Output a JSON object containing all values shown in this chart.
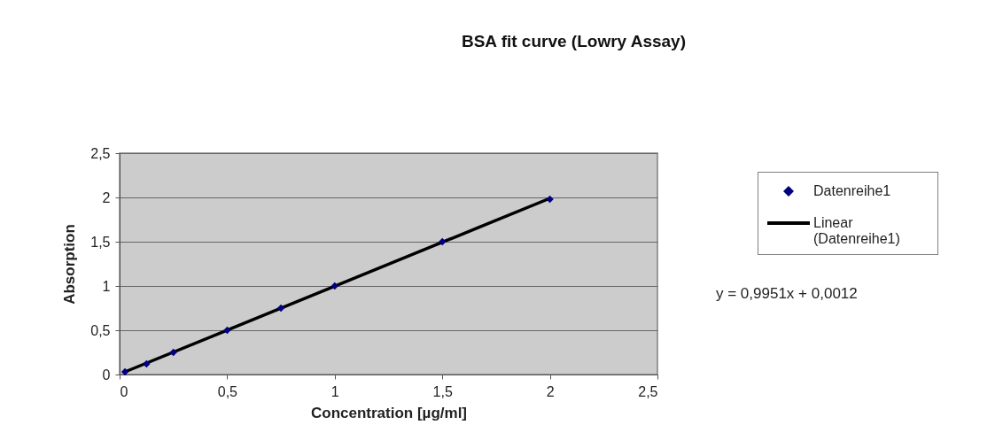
{
  "chart_data": {
    "type": "scatter",
    "title": "BSA fit curve (Lowry Assay)",
    "xlabel": "Concentration [µg/ml]",
    "ylabel": "Absorption",
    "x": [
      0.025,
      0.125,
      0.25,
      0.5,
      0.75,
      1,
      1.5,
      2
    ],
    "series": [
      {
        "name": "Datenreihe1",
        "marker": "diamond",
        "color": "#000080",
        "values": [
          0.03,
          0.12,
          0.25,
          0.5,
          0.75,
          1.0,
          1.5,
          1.98
        ]
      },
      {
        "name": "Linear (Datenreihe1)",
        "type": "line",
        "marker": "none",
        "color": "#000000",
        "x": [
          0.025,
          2
        ],
        "values": [
          0.03,
          1.99
        ]
      }
    ],
    "xlim": [
      0,
      2.5
    ],
    "xticks": [
      0,
      {
        "value": 0.5,
        "label": "0,5"
      },
      1,
      {
        "value": 1.5,
        "label": "1,5"
      },
      2,
      {
        "value": 2.5,
        "label": "2,5"
      }
    ],
    "ylim": [
      0,
      2.5
    ],
    "yticks": [
      0,
      {
        "value": 0.5,
        "label": "0,5"
      },
      1,
      {
        "value": 1.5,
        "label": "1,5"
      },
      2,
      {
        "value": 2.5,
        "label": "2,5"
      }
    ],
    "grid": "y",
    "legend": "right",
    "line_style": "solid",
    "annotations": [
      "y = 0,9951x + 0,0012"
    ]
  }
}
